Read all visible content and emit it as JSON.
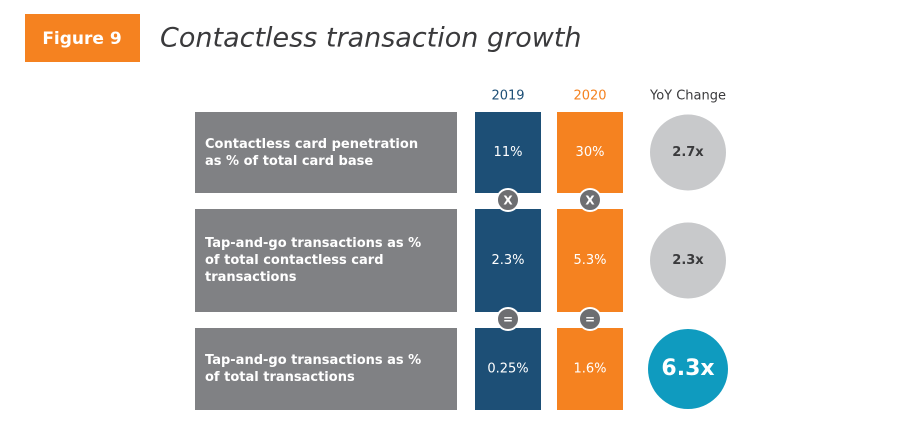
{
  "header": {
    "figure": "Figure 9",
    "title": "Contactless transaction growth"
  },
  "columns": [
    "2019",
    "2020",
    "YoY Change"
  ],
  "rows": [
    {
      "label": "Contactless card penetration as % of total card base",
      "values": [
        "11%",
        "30%"
      ],
      "change": "2.7x"
    },
    {
      "label": "Tap-and-go transactions as % of total contactless card transactions",
      "values": [
        "2.3%",
        "5.3%"
      ],
      "change": "2.3x"
    },
    {
      "label": "Tap-and-go transactions as % of total transactions",
      "values": [
        "0.25%",
        "1.6%"
      ],
      "change": "6.3x"
    }
  ],
  "operators": [
    "X",
    "="
  ]
}
